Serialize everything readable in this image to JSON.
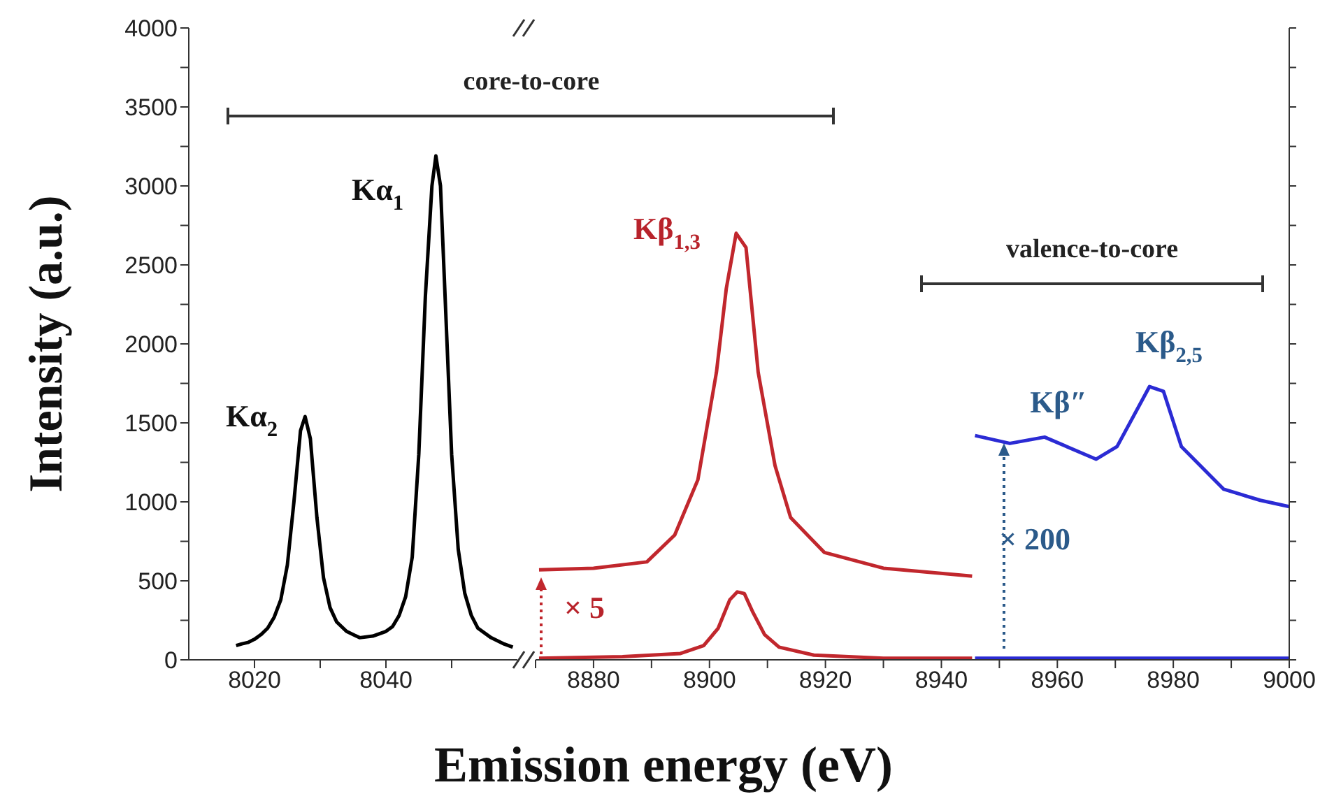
{
  "chart_data": [
    {
      "type": "line",
      "ylabel": "Intensity (a.u.)",
      "xlim": [
        8010,
        8060
      ],
      "xticks": [
        8020,
        {
          "value": 8030,
          "label": null
        },
        8040,
        {
          "value": 8050,
          "label": null
        }
      ],
      "ylim": [
        0,
        4000
      ],
      "yticks": [
        0,
        {
          "value": 250,
          "label": null
        },
        500,
        {
          "value": 750,
          "label": null
        },
        1000,
        {
          "value": 1250,
          "label": null
        },
        1500,
        {
          "value": 1750,
          "label": null
        },
        2000,
        {
          "value": 2250,
          "label": null
        },
        2500,
        {
          "value": 2750,
          "label": null
        },
        3000,
        {
          "value": 3250,
          "label": null
        },
        3500,
        {
          "value": 3750,
          "label": null
        },
        4000
      ],
      "annotations": [
        "core-to-core",
        "Kα$_{2}$",
        "Kα$_{1}$"
      ],
      "series": [
        {
          "color": "#000000",
          "x": [
            8017.2,
            8018,
            8019,
            8020,
            8021,
            8022,
            8023,
            8024,
            8025,
            8026,
            8027,
            8027.7,
            8028.5,
            8029.5,
            8030.5,
            8031.5,
            8032.5,
            8034,
            8036,
            8038,
            8040,
            8041,
            8042,
            8043,
            8044,
            8045,
            8046,
            8047,
            8047.6,
            8048.3,
            8049,
            8050,
            8051,
            8052,
            8053,
            8054,
            8056,
            8058,
            8059.3
          ],
          "values": [
            90,
            100,
            110,
            130,
            160,
            200,
            270,
            380,
            600,
            1000,
            1450,
            1540,
            1400,
            900,
            520,
            330,
            240,
            180,
            140,
            150,
            180,
            210,
            280,
            400,
            650,
            1300,
            2300,
            3000,
            3190,
            3000,
            2300,
            1300,
            700,
            420,
            280,
            200,
            140,
            100,
            80
          ]
        }
      ]
    },
    {
      "type": "line",
      "xlabel": "Emission energy (eV)",
      "xlim": [
        8870,
        9000
      ],
      "xticks": [
        {
          "value": 8870,
          "label": null
        },
        8880,
        {
          "value": 8890,
          "label": null
        },
        8900,
        {
          "value": 8910,
          "label": null
        },
        8920,
        {
          "value": 8930,
          "label": null
        },
        8940,
        {
          "value": 8950,
          "label": null
        },
        8960,
        {
          "value": 8970,
          "label": null
        },
        8980,
        {
          "value": 8990,
          "label": null
        },
        9000
      ],
      "ylim": [
        0,
        4000
      ],
      "yticks": [
        0,
        {
          "value": 250,
          "label": null
        },
        500,
        {
          "value": 750,
          "label": null
        },
        1000,
        {
          "value": 1250,
          "label": null
        },
        1500,
        {
          "value": 1750,
          "label": null
        },
        2000,
        {
          "value": 2250,
          "label": null
        },
        2500,
        {
          "value": 2750,
          "label": null
        },
        3000,
        {
          "value": 3250,
          "label": null
        },
        3500,
        {
          "value": 3750,
          "label": null
        },
        4000
      ],
      "tick_labels": "x",
      "annotations": [
        "valence-to-core",
        "Kβ$_{1,3}$",
        "× 5",
        "Kβ″",
        "Kβ$_{2,5}$",
        "× 200"
      ],
      "series": [
        {
          "color": "#c1272d",
          "x": [
            8870.6,
            8880,
            8889.2,
            8894,
            8898,
            8901.2,
            8902.9,
            8904.6,
            8906.3,
            8908.4,
            8911.3,
            8914,
            8919.8,
            8930,
            8945.3
          ],
          "values": [
            570,
            580,
            620,
            790,
            1140,
            1820,
            2350,
            2700,
            2610,
            1820,
            1230,
            900,
            680,
            580,
            530
          ]
        },
        {
          "color": "#c1272d",
          "x": [
            8870.6,
            8885,
            8895,
            8899,
            8901.5,
            8903.5,
            8904.8,
            8906,
            8907.5,
            8909.5,
            8912,
            8918,
            8930,
            8945.3
          ],
          "values": [
            10,
            20,
            40,
            90,
            200,
            380,
            430,
            420,
            300,
            160,
            80,
            30,
            10,
            10
          ]
        },
        {
          "color": "#2b2bd4",
          "x": [
            8945.8,
            8960,
            8975,
            8990,
            9000
          ],
          "values": [
            10,
            10,
            10,
            10,
            10
          ]
        },
        {
          "color": "#2b2bd4",
          "x": [
            8945.8,
            8951.8,
            8957.8,
            8966.7,
            8970.3,
            8975.9,
            8978.3,
            8981.4,
            8988.7,
            8995,
            9000
          ],
          "values": [
            1420,
            1370,
            1410,
            1270,
            1350,
            1730,
            1700,
            1350,
            1080,
            1010,
            970
          ]
        }
      ]
    }
  ]
}
